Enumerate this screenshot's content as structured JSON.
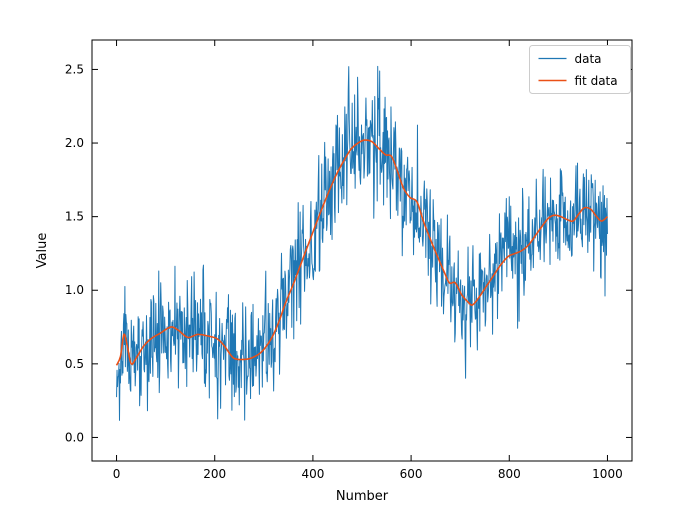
{
  "chart_data": {
    "type": "line",
    "title": "",
    "xlabel": "Number",
    "ylabel": "Value",
    "xlim": [
      -50,
      1050
    ],
    "ylim": [
      -0.16,
      2.7
    ],
    "xtick_values": [
      0,
      200,
      400,
      600,
      800,
      1000
    ],
    "xtick_labels": [
      "0",
      "200",
      "400",
      "600",
      "800",
      "1000"
    ],
    "ytick_values": [
      0.0,
      0.5,
      1.0,
      1.5,
      2.0,
      2.5
    ],
    "ytick_labels": [
      "0.0",
      "0.5",
      "1.0",
      "1.5",
      "2.0",
      "2.5"
    ],
    "grid": false,
    "tick_style": {
      "direction": "in",
      "length": 6,
      "all_sides": true
    },
    "legend": {
      "position": "upper right",
      "border_color": "#cccccc",
      "background": "#ffffff",
      "items": [
        {
          "label": "data",
          "color": "#1f77b4"
        },
        {
          "label": "fit data",
          "color": "#ea5017"
        }
      ]
    },
    "series": [
      {
        "name": "data",
        "kind": "noisy",
        "color": "#1f77b4",
        "line_width": 1,
        "x_start": 0,
        "x_end": 1000,
        "n_points": 1001,
        "noise_sigma": 0.19,
        "seed": 11,
        "base": "fit",
        "observed_extremes": {
          "max": 2.56,
          "max_x": 505,
          "min": -0.06
        }
      },
      {
        "name": "fit data",
        "kind": "smooth",
        "color": "#ea5017",
        "line_width": 1.6,
        "points": [
          [
            0,
            0.49
          ],
          [
            8,
            0.55
          ],
          [
            15,
            0.7
          ],
          [
            22,
            0.62
          ],
          [
            30,
            0.5
          ],
          [
            42,
            0.55
          ],
          [
            55,
            0.62
          ],
          [
            70,
            0.67
          ],
          [
            90,
            0.71
          ],
          [
            110,
            0.75
          ],
          [
            125,
            0.73
          ],
          [
            145,
            0.68
          ],
          [
            165,
            0.7
          ],
          [
            185,
            0.69
          ],
          [
            205,
            0.67
          ],
          [
            220,
            0.62
          ],
          [
            238,
            0.54
          ],
          [
            258,
            0.53
          ],
          [
            275,
            0.54
          ],
          [
            295,
            0.58
          ],
          [
            315,
            0.67
          ],
          [
            330,
            0.78
          ],
          [
            345,
            0.92
          ],
          [
            360,
            1.04
          ],
          [
            378,
            1.2
          ],
          [
            395,
            1.35
          ],
          [
            412,
            1.5
          ],
          [
            430,
            1.65
          ],
          [
            447,
            1.78
          ],
          [
            463,
            1.88
          ],
          [
            478,
            1.96
          ],
          [
            492,
            2.0
          ],
          [
            505,
            2.02
          ],
          [
            520,
            2.01
          ],
          [
            535,
            1.96
          ],
          [
            548,
            1.92
          ],
          [
            560,
            1.91
          ],
          [
            572,
            1.81
          ],
          [
            585,
            1.69
          ],
          [
            598,
            1.63
          ],
          [
            612,
            1.6
          ],
          [
            625,
            1.47
          ],
          [
            640,
            1.34
          ],
          [
            655,
            1.22
          ],
          [
            668,
            1.12
          ],
          [
            678,
            1.05
          ],
          [
            690,
            1.05
          ],
          [
            703,
            0.97
          ],
          [
            716,
            0.92
          ],
          [
            725,
            0.9
          ],
          [
            738,
            0.95
          ],
          [
            752,
            1.02
          ],
          [
            768,
            1.1
          ],
          [
            782,
            1.17
          ],
          [
            798,
            1.23
          ],
          [
            812,
            1.25
          ],
          [
            826,
            1.27
          ],
          [
            840,
            1.31
          ],
          [
            855,
            1.38
          ],
          [
            868,
            1.44
          ],
          [
            880,
            1.49
          ],
          [
            892,
            1.51
          ],
          [
            905,
            1.5
          ],
          [
            918,
            1.48
          ],
          [
            930,
            1.47
          ],
          [
            942,
            1.52
          ],
          [
            953,
            1.56
          ],
          [
            966,
            1.55
          ],
          [
            978,
            1.5
          ],
          [
            988,
            1.47
          ],
          [
            1000,
            1.5
          ]
        ]
      }
    ]
  }
}
